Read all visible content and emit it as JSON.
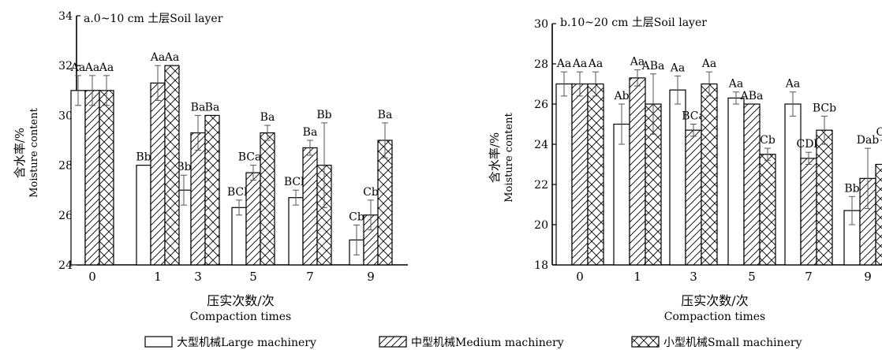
{
  "chart_data": [
    {
      "type": "bar",
      "title": "a.0~10 cm 土层Soil layer",
      "xlabel_cn": "压实次数/次",
      "xlabel_en": "Compaction times",
      "ylabel_cn": "含水率/%",
      "ylabel_en": "Moisture content",
      "categories": [
        "0",
        "1",
        "3",
        "5",
        "7",
        "9"
      ],
      "ylim": [
        24,
        34
      ],
      "yticks": [
        "24",
        "26",
        "28",
        "30",
        "32",
        "34"
      ],
      "series": [
        {
          "name": "大型机械Large machinery",
          "values": [
            31.0,
            28.0,
            27.0,
            26.3,
            26.7,
            25.0
          ],
          "errors": [
            0.6,
            0.0,
            0.6,
            0.3,
            0.3,
            0.6
          ],
          "labels": [
            "Aa",
            "Bb",
            "Bb",
            "BCb",
            "BCb",
            "Cb"
          ]
        },
        {
          "name": "中型机械Medium machinery",
          "values": [
            31.0,
            31.3,
            29.3,
            27.7,
            28.7,
            26.0
          ],
          "errors": [
            0.6,
            0.7,
            0.7,
            0.3,
            0.3,
            0.6
          ],
          "labels": [
            "Aa",
            "Aa",
            "Ba",
            "BCab",
            "Ba",
            "Cb"
          ]
        },
        {
          "name": "小型机械Small machinery",
          "values": [
            31.0,
            32.0,
            30.0,
            29.3,
            28.0,
            29.0
          ],
          "errors": [
            0.6,
            0.0,
            0.0,
            0.3,
            1.7,
            0.7
          ],
          "labels": [
            "Aa",
            "Aa",
            "Ba",
            "Ba",
            "Bb",
            "Ba"
          ]
        }
      ]
    },
    {
      "type": "bar",
      "title": "b.10~20 cm 土层Soil layer",
      "xlabel_cn": "压实次数/次",
      "xlabel_en": "Compaction times",
      "ylabel_cn": "含水率/%",
      "ylabel_en": "Moisture content",
      "categories": [
        "0",
        "1",
        "3",
        "5",
        "7",
        "9"
      ],
      "ylim": [
        18,
        30
      ],
      "yticks": [
        "18",
        "20",
        "22",
        "24",
        "26",
        "28",
        "30"
      ],
      "series": [
        {
          "name": "大型机械Large machinery",
          "values": [
            27.0,
            25.0,
            26.7,
            26.3,
            26.0,
            20.7
          ],
          "errors": [
            0.6,
            1.0,
            0.7,
            0.3,
            0.6,
            0.7
          ],
          "labels": [
            "Aa",
            "Ab",
            "Aa",
            "Aa",
            "Aa",
            "Bb"
          ]
        },
        {
          "name": "中型机械Medium machinery",
          "values": [
            27.0,
            27.3,
            24.7,
            26.0,
            23.3,
            22.3
          ],
          "errors": [
            0.6,
            0.4,
            0.3,
            0.0,
            0.3,
            1.5
          ],
          "labels": [
            "Aa",
            "Aa",
            "BCa",
            "ABa",
            "CDb",
            "Dab"
          ]
        },
        {
          "name": "小型机械Small machinery",
          "values": [
            27.0,
            26.0,
            27.0,
            23.5,
            24.7,
            23.0
          ],
          "errors": [
            0.6,
            1.5,
            0.6,
            0.3,
            0.7,
            1.2
          ],
          "labels": [
            "Aa",
            "ABa",
            "Aa",
            "Cb",
            "BCb",
            "Ca"
          ]
        }
      ]
    }
  ],
  "legend": {
    "large": "大型机械Large machinery",
    "medium": "中型机械Medium machinery",
    "small": "小型机械Small machinery"
  }
}
